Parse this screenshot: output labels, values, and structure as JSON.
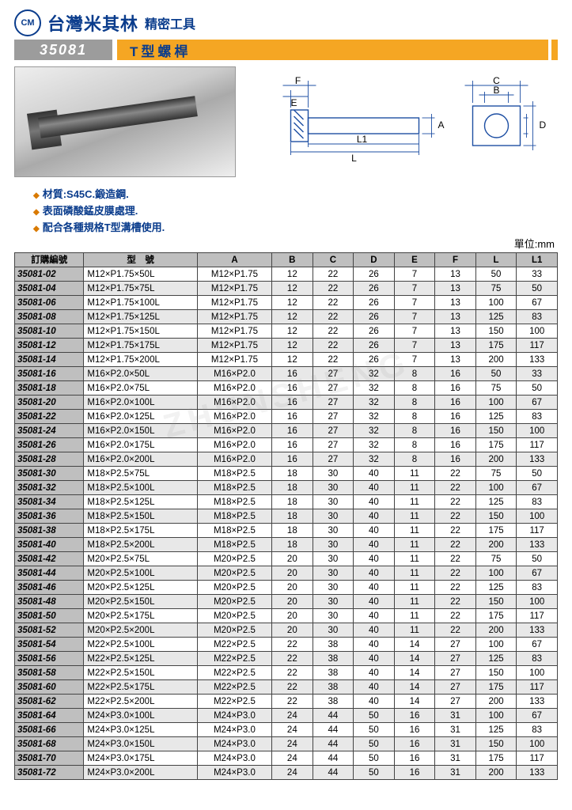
{
  "header": {
    "logo_text": "CM",
    "brand_main": "台灣米其林",
    "brand_sub": "精密工具",
    "product_code": "35081",
    "product_title": "T型螺桿"
  },
  "bullets": {
    "b1": "材質:S45C.鍛造鋼.",
    "b2": "表面磷酸錳皮膜處理.",
    "b3": "配合各種規格T型溝槽使用."
  },
  "diagram_labels": {
    "E": "E",
    "F": "F",
    "L": "L",
    "L1": "L1",
    "A": "A",
    "B": "B",
    "C": "C",
    "D": "D"
  },
  "unit_label": "單位:mm",
  "watermark": "ZHUNSHENG",
  "columns": {
    "partno": "訂購編號",
    "model": "型　號",
    "A": "A",
    "B": "B",
    "C": "C",
    "D": "D",
    "E": "E",
    "F": "F",
    "L": "L",
    "L1": "L1"
  },
  "rows": [
    {
      "pn": "35081-02",
      "m": "M12×P1.75×50L",
      "a": "M12×P1.75",
      "B": "12",
      "C": "22",
      "D": "26",
      "E": "7",
      "F": "13",
      "L": "50",
      "L1": "33"
    },
    {
      "pn": "35081-04",
      "m": "M12×P1.75×75L",
      "a": "M12×P1.75",
      "B": "12",
      "C": "22",
      "D": "26",
      "E": "7",
      "F": "13",
      "L": "75",
      "L1": "50"
    },
    {
      "pn": "35081-06",
      "m": "M12×P1.75×100L",
      "a": "M12×P1.75",
      "B": "12",
      "C": "22",
      "D": "26",
      "E": "7",
      "F": "13",
      "L": "100",
      "L1": "67"
    },
    {
      "pn": "35081-08",
      "m": "M12×P1.75×125L",
      "a": "M12×P1.75",
      "B": "12",
      "C": "22",
      "D": "26",
      "E": "7",
      "F": "13",
      "L": "125",
      "L1": "83"
    },
    {
      "pn": "35081-10",
      "m": "M12×P1.75×150L",
      "a": "M12×P1.75",
      "B": "12",
      "C": "22",
      "D": "26",
      "E": "7",
      "F": "13",
      "L": "150",
      "L1": "100"
    },
    {
      "pn": "35081-12",
      "m": "M12×P1.75×175L",
      "a": "M12×P1.75",
      "B": "12",
      "C": "22",
      "D": "26",
      "E": "7",
      "F": "13",
      "L": "175",
      "L1": "117"
    },
    {
      "pn": "35081-14",
      "m": "M12×P1.75×200L",
      "a": "M12×P1.75",
      "B": "12",
      "C": "22",
      "D": "26",
      "E": "7",
      "F": "13",
      "L": "200",
      "L1": "133"
    },
    {
      "pn": "35081-16",
      "m": "M16×P2.0×50L",
      "a": "M16×P2.0",
      "B": "16",
      "C": "27",
      "D": "32",
      "E": "8",
      "F": "16",
      "L": "50",
      "L1": "33"
    },
    {
      "pn": "35081-18",
      "m": "M16×P2.0×75L",
      "a": "M16×P2.0",
      "B": "16",
      "C": "27",
      "D": "32",
      "E": "8",
      "F": "16",
      "L": "75",
      "L1": "50"
    },
    {
      "pn": "35081-20",
      "m": "M16×P2.0×100L",
      "a": "M16×P2.0",
      "B": "16",
      "C": "27",
      "D": "32",
      "E": "8",
      "F": "16",
      "L": "100",
      "L1": "67"
    },
    {
      "pn": "35081-22",
      "m": "M16×P2.0×125L",
      "a": "M16×P2.0",
      "B": "16",
      "C": "27",
      "D": "32",
      "E": "8",
      "F": "16",
      "L": "125",
      "L1": "83"
    },
    {
      "pn": "35081-24",
      "m": "M16×P2.0×150L",
      "a": "M16×P2.0",
      "B": "16",
      "C": "27",
      "D": "32",
      "E": "8",
      "F": "16",
      "L": "150",
      "L1": "100"
    },
    {
      "pn": "35081-26",
      "m": "M16×P2.0×175L",
      "a": "M16×P2.0",
      "B": "16",
      "C": "27",
      "D": "32",
      "E": "8",
      "F": "16",
      "L": "175",
      "L1": "117"
    },
    {
      "pn": "35081-28",
      "m": "M16×P2.0×200L",
      "a": "M16×P2.0",
      "B": "16",
      "C": "27",
      "D": "32",
      "E": "8",
      "F": "16",
      "L": "200",
      "L1": "133"
    },
    {
      "pn": "35081-30",
      "m": "M18×P2.5×75L",
      "a": "M18×P2.5",
      "B": "18",
      "C": "30",
      "D": "40",
      "E": "11",
      "F": "22",
      "L": "75",
      "L1": "50"
    },
    {
      "pn": "35081-32",
      "m": "M18×P2.5×100L",
      "a": "M18×P2.5",
      "B": "18",
      "C": "30",
      "D": "40",
      "E": "11",
      "F": "22",
      "L": "100",
      "L1": "67"
    },
    {
      "pn": "35081-34",
      "m": "M18×P2.5×125L",
      "a": "M18×P2.5",
      "B": "18",
      "C": "30",
      "D": "40",
      "E": "11",
      "F": "22",
      "L": "125",
      "L1": "83"
    },
    {
      "pn": "35081-36",
      "m": "M18×P2.5×150L",
      "a": "M18×P2.5",
      "B": "18",
      "C": "30",
      "D": "40",
      "E": "11",
      "F": "22",
      "L": "150",
      "L1": "100"
    },
    {
      "pn": "35081-38",
      "m": "M18×P2.5×175L",
      "a": "M18×P2.5",
      "B": "18",
      "C": "30",
      "D": "40",
      "E": "11",
      "F": "22",
      "L": "175",
      "L1": "117"
    },
    {
      "pn": "35081-40",
      "m": "M18×P2.5×200L",
      "a": "M18×P2.5",
      "B": "18",
      "C": "30",
      "D": "40",
      "E": "11",
      "F": "22",
      "L": "200",
      "L1": "133"
    },
    {
      "pn": "35081-42",
      "m": "M20×P2.5×75L",
      "a": "M20×P2.5",
      "B": "20",
      "C": "30",
      "D": "40",
      "E": "11",
      "F": "22",
      "L": "75",
      "L1": "50"
    },
    {
      "pn": "35081-44",
      "m": "M20×P2.5×100L",
      "a": "M20×P2.5",
      "B": "20",
      "C": "30",
      "D": "40",
      "E": "11",
      "F": "22",
      "L": "100",
      "L1": "67"
    },
    {
      "pn": "35081-46",
      "m": "M20×P2.5×125L",
      "a": "M20×P2.5",
      "B": "20",
      "C": "30",
      "D": "40",
      "E": "11",
      "F": "22",
      "L": "125",
      "L1": "83"
    },
    {
      "pn": "35081-48",
      "m": "M20×P2.5×150L",
      "a": "M20×P2.5",
      "B": "20",
      "C": "30",
      "D": "40",
      "E": "11",
      "F": "22",
      "L": "150",
      "L1": "100"
    },
    {
      "pn": "35081-50",
      "m": "M20×P2.5×175L",
      "a": "M20×P2.5",
      "B": "20",
      "C": "30",
      "D": "40",
      "E": "11",
      "F": "22",
      "L": "175",
      "L1": "117"
    },
    {
      "pn": "35081-52",
      "m": "M20×P2.5×200L",
      "a": "M20×P2.5",
      "B": "20",
      "C": "30",
      "D": "40",
      "E": "11",
      "F": "22",
      "L": "200",
      "L1": "133"
    },
    {
      "pn": "35081-54",
      "m": "M22×P2.5×100L",
      "a": "M22×P2.5",
      "B": "22",
      "C": "38",
      "D": "40",
      "E": "14",
      "F": "27",
      "L": "100",
      "L1": "67"
    },
    {
      "pn": "35081-56",
      "m": "M22×P2.5×125L",
      "a": "M22×P2.5",
      "B": "22",
      "C": "38",
      "D": "40",
      "E": "14",
      "F": "27",
      "L": "125",
      "L1": "83"
    },
    {
      "pn": "35081-58",
      "m": "M22×P2.5×150L",
      "a": "M22×P2.5",
      "B": "22",
      "C": "38",
      "D": "40",
      "E": "14",
      "F": "27",
      "L": "150",
      "L1": "100"
    },
    {
      "pn": "35081-60",
      "m": "M22×P2.5×175L",
      "a": "M22×P2.5",
      "B": "22",
      "C": "38",
      "D": "40",
      "E": "14",
      "F": "27",
      "L": "175",
      "L1": "117"
    },
    {
      "pn": "35081-62",
      "m": "M22×P2.5×200L",
      "a": "M22×P2.5",
      "B": "22",
      "C": "38",
      "D": "40",
      "E": "14",
      "F": "27",
      "L": "200",
      "L1": "133"
    },
    {
      "pn": "35081-64",
      "m": "M24×P3.0×100L",
      "a": "M24×P3.0",
      "B": "24",
      "C": "44",
      "D": "50",
      "E": "16",
      "F": "31",
      "L": "100",
      "L1": "67"
    },
    {
      "pn": "35081-66",
      "m": "M24×P3.0×125L",
      "a": "M24×P3.0",
      "B": "24",
      "C": "44",
      "D": "50",
      "E": "16",
      "F": "31",
      "L": "125",
      "L1": "83"
    },
    {
      "pn": "35081-68",
      "m": "M24×P3.0×150L",
      "a": "M24×P3.0",
      "B": "24",
      "C": "44",
      "D": "50",
      "E": "16",
      "F": "31",
      "L": "150",
      "L1": "100"
    },
    {
      "pn": "35081-70",
      "m": "M24×P3.0×175L",
      "a": "M24×P3.0",
      "B": "24",
      "C": "44",
      "D": "50",
      "E": "16",
      "F": "31",
      "L": "175",
      "L1": "117"
    },
    {
      "pn": "35081-72",
      "m": "M24×P3.0×200L",
      "a": "M24×P3.0",
      "B": "24",
      "C": "44",
      "D": "50",
      "E": "16",
      "F": "31",
      "L": "200",
      "L1": "133"
    }
  ]
}
